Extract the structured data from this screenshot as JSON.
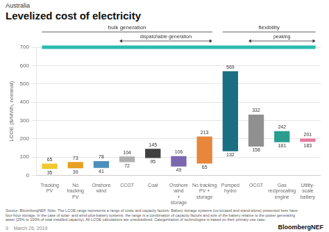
{
  "chart_data": {
    "type": "bar",
    "title": "Levelized cost of electricity",
    "subtitle": "Australia",
    "ylabel": "LCOE ($/MWh, nominal)",
    "categories": [
      "Tracking\nPV",
      "No\ntracking\nPV",
      "Onshore\nwind",
      "CCGT",
      "Coal",
      "Onshore\nwind\n+\nstorage",
      "No tracking\nPV +\nstorage",
      "Pumped\nhydro",
      "OCGT",
      "Gas\nreciprocating\nengine",
      "Utility-\nscale\nbattery"
    ],
    "values": [
      [
        35,
        65
      ],
      [
        39,
        73
      ],
      [
        41,
        78
      ],
      [
        72,
        104
      ],
      [
        95,
        145
      ],
      [
        49,
        106
      ],
      [
        65,
        213
      ],
      [
        132,
        569
      ],
      [
        158,
        332
      ],
      [
        181,
        242
      ],
      [
        183,
        201
      ]
    ],
    "colors": [
      "#f0c832",
      "#e8a020",
      "#4c8fbd",
      "#b0b0b0",
      "#404040",
      "#7b68b0",
      "#e8863c",
      "#1a6e82",
      "#909090",
      "#2a9d8f",
      "#e87ba0"
    ],
    "ylim": [
      0,
      700
    ],
    "yticks": [
      0,
      100,
      200,
      300,
      400,
      500,
      600,
      700
    ],
    "grid": true,
    "data_labels": true,
    "reference_line": {
      "y": 700,
      "color": "#2bbcb0"
    },
    "brackets": [
      {
        "text": "bulk generation",
        "from": "Tracking\nPV",
        "to": "No tracking\nPV +\nstorage",
        "inner": [
          {
            "text": "dispatchable generation",
            "from": "CCGT",
            "to": "No tracking\nPV +\nstorage"
          }
        ]
      },
      {
        "text": "flexibility",
        "from": "Pumped\nhydro",
        "to": "Utility-\nscale\nbattery",
        "inner": [
          {
            "text": "peaking",
            "from": "OCGT",
            "to": "Utility-\nscale\nbattery"
          }
        ]
      }
    ],
    "source_text": "Source: BloombergNEF. Note: The LCOE range represents a range of costs and capacity factors. Battery storage systems (co-located and stand-alone) presented here have\nfour-hour storage. In the case of solar- and wind-plus-battery systems, the range is a combination of capacity factors and size of the battery relative to the power generating\nasset (25% to 100% of total installed capacity). All LCOE calculations are unsubsidized. Categorization of technologies is based on their primary use case.",
    "page_num": "9",
    "date_label": "March 26, 2019",
    "logo": "BloombergNEF"
  }
}
